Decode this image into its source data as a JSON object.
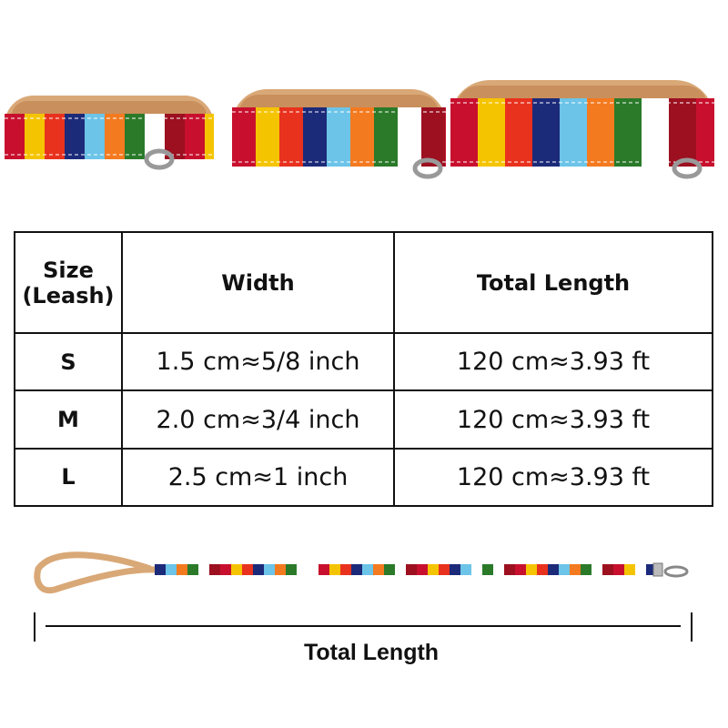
{
  "stripe_colors": [
    "#c8102e",
    "#f5c400",
    "#e8321e",
    "#1c2a7a",
    "#6cc4e8",
    "#f47a1f",
    "#2a7a2a",
    "#ffffff",
    "#9c1020"
  ],
  "leather_color": "#d9a877",
  "table": {
    "headers": {
      "size": "Size\n(Leash)",
      "width": "Width",
      "length": "Total Length"
    },
    "rows": [
      {
        "size": "S",
        "width": "1.5 cm≈5/8 inch",
        "length": "120 cm≈3.93 ft"
      },
      {
        "size": "M",
        "width": "2.0 cm≈3/4 inch",
        "length": "120 cm≈3.93 ft"
      },
      {
        "size": "L",
        "width": "2.5 cm≈1 inch",
        "length": "120 cm≈3.93 ft"
      }
    ]
  },
  "diagram": {
    "caption": "Total Length"
  }
}
